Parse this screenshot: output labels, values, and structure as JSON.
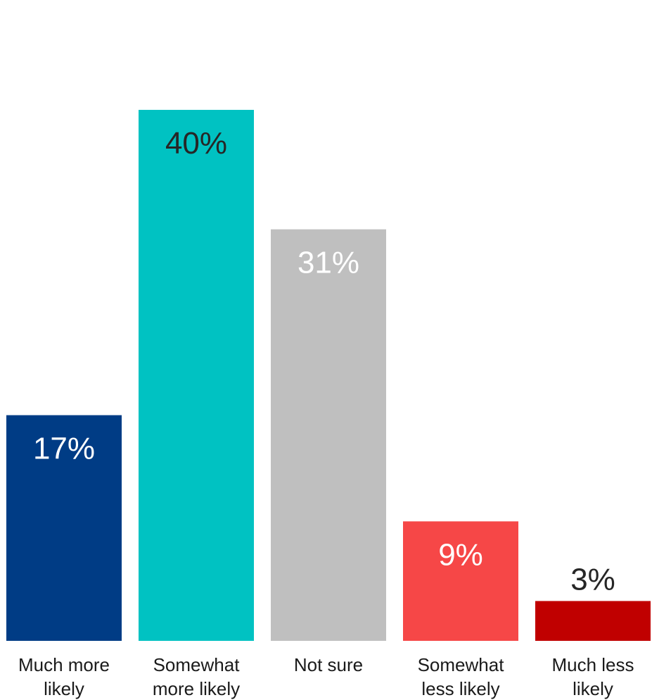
{
  "chart_data": {
    "type": "bar",
    "categories": [
      [
        "Much more",
        "likely"
      ],
      [
        "Somewhat",
        "more likely"
      ],
      [
        "Not sure"
      ],
      [
        "Somewhat",
        "less likely"
      ],
      [
        "Much less",
        "likely"
      ]
    ],
    "values": [
      17,
      40,
      31,
      9,
      3
    ],
    "value_labels": [
      "17%",
      "40%",
      "31%",
      "9%",
      "3%"
    ],
    "colors": [
      "#003C85",
      "#00C2C2",
      "#BFBFBF",
      "#F64747",
      "#C00000"
    ],
    "label_colors": [
      "#FFFFFF",
      "#262626",
      "#FFFFFF",
      "#FFFFFF",
      "#262626"
    ],
    "label_position": [
      "inside",
      "inside",
      "inside",
      "inside",
      "outside"
    ],
    "ylim": [
      0,
      40
    ],
    "title": "",
    "xlabel": "",
    "ylabel": "",
    "grid": false,
    "legend": "none"
  }
}
